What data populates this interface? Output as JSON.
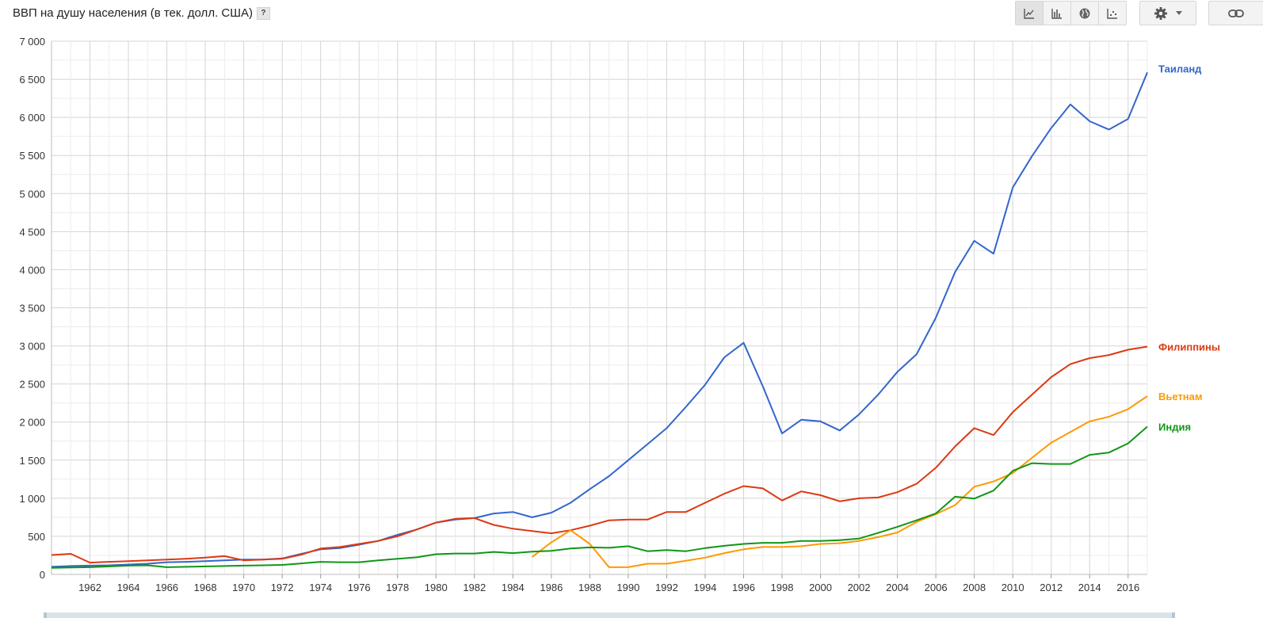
{
  "header": {
    "title": "ВВП на душу населения (в тек. долл. США)",
    "help_label": "?"
  },
  "toolbar": {
    "buttons": [
      {
        "icon": "line-chart-icon",
        "active": true
      },
      {
        "icon": "bar-chart-icon",
        "active": false
      },
      {
        "icon": "globe-icon",
        "active": false
      },
      {
        "icon": "scatter-chart-icon",
        "active": false
      }
    ],
    "settings_icon": "gear-icon",
    "link_icon": "link-icon"
  },
  "chart_data": {
    "type": "line",
    "title": "ВВП на душу населения (в тек. долл. США)",
    "xlim": [
      1960,
      2017
    ],
    "ylim": [
      0,
      7000
    ],
    "y_ticks": [
      {
        "value": 0,
        "label": "0"
      },
      {
        "value": 500,
        "label": "500"
      },
      {
        "value": 1000,
        "label": "1 000"
      },
      {
        "value": 1500,
        "label": "1 500"
      },
      {
        "value": 2000,
        "label": "2 000"
      },
      {
        "value": 2500,
        "label": "2 500"
      },
      {
        "value": 3000,
        "label": "3 000"
      },
      {
        "value": 3500,
        "label": "3 500"
      },
      {
        "value": 4000,
        "label": "4 000"
      },
      {
        "value": 4500,
        "label": "4 500"
      },
      {
        "value": 5000,
        "label": "5 000"
      },
      {
        "value": 5500,
        "label": "5 500"
      },
      {
        "value": 6000,
        "label": "6 000"
      },
      {
        "value": 6500,
        "label": "6 500"
      },
      {
        "value": 7000,
        "label": "7 000"
      }
    ],
    "x_ticks": [
      {
        "value": 1962,
        "label": "1962"
      },
      {
        "value": 1964,
        "label": "1964"
      },
      {
        "value": 1966,
        "label": "1966"
      },
      {
        "value": 1968,
        "label": "1968"
      },
      {
        "value": 1970,
        "label": "1970"
      },
      {
        "value": 1972,
        "label": "1972"
      },
      {
        "value": 1974,
        "label": "1974"
      },
      {
        "value": 1976,
        "label": "1976"
      },
      {
        "value": 1978,
        "label": "1978"
      },
      {
        "value": 1980,
        "label": "1980"
      },
      {
        "value": 1982,
        "label": "1982"
      },
      {
        "value": 1984,
        "label": "1984"
      },
      {
        "value": 1986,
        "label": "1986"
      },
      {
        "value": 1988,
        "label": "1988"
      },
      {
        "value": 1990,
        "label": "1990"
      },
      {
        "value": 1992,
        "label": "1992"
      },
      {
        "value": 1994,
        "label": "1994"
      },
      {
        "value": 1996,
        "label": "1996"
      },
      {
        "value": 1998,
        "label": "1998"
      },
      {
        "value": 2000,
        "label": "2000"
      },
      {
        "value": 2002,
        "label": "2002"
      },
      {
        "value": 2004,
        "label": "2004"
      },
      {
        "value": 2006,
        "label": "2006"
      },
      {
        "value": 2008,
        "label": "2008"
      },
      {
        "value": 2010,
        "label": "2010"
      },
      {
        "value": 2012,
        "label": "2012"
      },
      {
        "value": 2014,
        "label": "2014"
      },
      {
        "value": 2016,
        "label": "2016"
      }
    ],
    "grid": true,
    "legend": "right-end labels",
    "series": [
      {
        "name": "Таиланд",
        "color": "#3366cc",
        "points": [
          [
            1960,
            100
          ],
          [
            1961,
            110
          ],
          [
            1962,
            115
          ],
          [
            1963,
            120
          ],
          [
            1964,
            130
          ],
          [
            1965,
            140
          ],
          [
            1966,
            160
          ],
          [
            1967,
            165
          ],
          [
            1968,
            175
          ],
          [
            1969,
            185
          ],
          [
            1970,
            195
          ],
          [
            1971,
            195
          ],
          [
            1972,
            210
          ],
          [
            1973,
            270
          ],
          [
            1974,
            330
          ],
          [
            1975,
            345
          ],
          [
            1976,
            390
          ],
          [
            1977,
            440
          ],
          [
            1978,
            520
          ],
          [
            1979,
            590
          ],
          [
            1980,
            680
          ],
          [
            1981,
            720
          ],
          [
            1982,
            740
          ],
          [
            1983,
            800
          ],
          [
            1984,
            820
          ],
          [
            1985,
            750
          ],
          [
            1986,
            810
          ],
          [
            1987,
            940
          ],
          [
            1988,
            1120
          ],
          [
            1989,
            1290
          ],
          [
            1990,
            1500
          ],
          [
            1991,
            1710
          ],
          [
            1992,
            1920
          ],
          [
            1993,
            2200
          ],
          [
            1994,
            2490
          ],
          [
            1995,
            2850
          ],
          [
            1996,
            3040
          ],
          [
            1997,
            2470
          ],
          [
            1998,
            1850
          ],
          [
            1999,
            2030
          ],
          [
            2000,
            2010
          ],
          [
            2001,
            1890
          ],
          [
            2002,
            2100
          ],
          [
            2003,
            2360
          ],
          [
            2004,
            2660
          ],
          [
            2005,
            2890
          ],
          [
            2006,
            3370
          ],
          [
            2007,
            3970
          ],
          [
            2008,
            4380
          ],
          [
            2009,
            4210
          ],
          [
            2010,
            5080
          ],
          [
            2011,
            5490
          ],
          [
            2012,
            5860
          ],
          [
            2013,
            6170
          ],
          [
            2014,
            5950
          ],
          [
            2015,
            5840
          ],
          [
            2016,
            5980
          ],
          [
            2017,
            6590
          ]
        ]
      },
      {
        "name": "Филиппины",
        "color": "#dc3912",
        "points": [
          [
            1960,
            255
          ],
          [
            1961,
            270
          ],
          [
            1962,
            155
          ],
          [
            1963,
            165
          ],
          [
            1964,
            175
          ],
          [
            1965,
            185
          ],
          [
            1966,
            195
          ],
          [
            1967,
            205
          ],
          [
            1968,
            220
          ],
          [
            1969,
            240
          ],
          [
            1970,
            185
          ],
          [
            1971,
            195
          ],
          [
            1972,
            205
          ],
          [
            1973,
            260
          ],
          [
            1974,
            340
          ],
          [
            1975,
            360
          ],
          [
            1976,
            400
          ],
          [
            1977,
            440
          ],
          [
            1978,
            500
          ],
          [
            1979,
            590
          ],
          [
            1980,
            680
          ],
          [
            1981,
            730
          ],
          [
            1982,
            740
          ],
          [
            1983,
            650
          ],
          [
            1984,
            600
          ],
          [
            1985,
            570
          ],
          [
            1986,
            540
          ],
          [
            1987,
            580
          ],
          [
            1988,
            640
          ],
          [
            1989,
            710
          ],
          [
            1990,
            720
          ],
          [
            1991,
            720
          ],
          [
            1992,
            820
          ],
          [
            1993,
            820
          ],
          [
            1994,
            940
          ],
          [
            1995,
            1060
          ],
          [
            1996,
            1160
          ],
          [
            1997,
            1130
          ],
          [
            1998,
            970
          ],
          [
            1999,
            1090
          ],
          [
            2000,
            1040
          ],
          [
            2001,
            960
          ],
          [
            2002,
            1000
          ],
          [
            2003,
            1010
          ],
          [
            2004,
            1080
          ],
          [
            2005,
            1190
          ],
          [
            2006,
            1400
          ],
          [
            2007,
            1680
          ],
          [
            2008,
            1920
          ],
          [
            2009,
            1830
          ],
          [
            2010,
            2130
          ],
          [
            2011,
            2360
          ],
          [
            2012,
            2590
          ],
          [
            2013,
            2760
          ],
          [
            2014,
            2840
          ],
          [
            2015,
            2880
          ],
          [
            2016,
            2950
          ],
          [
            2017,
            2990
          ]
        ]
      },
      {
        "name": "Вьетнам",
        "color": "#ff9900",
        "points": [
          [
            1985,
            230
          ],
          [
            1986,
            420
          ],
          [
            1987,
            580
          ],
          [
            1988,
            400
          ],
          [
            1989,
            95
          ],
          [
            1990,
            95
          ],
          [
            1991,
            140
          ],
          [
            1992,
            140
          ],
          [
            1993,
            180
          ],
          [
            1994,
            220
          ],
          [
            1995,
            280
          ],
          [
            1996,
            330
          ],
          [
            1997,
            360
          ],
          [
            1998,
            360
          ],
          [
            1999,
            370
          ],
          [
            2000,
            400
          ],
          [
            2001,
            410
          ],
          [
            2002,
            440
          ],
          [
            2003,
            490
          ],
          [
            2004,
            550
          ],
          [
            2005,
            690
          ],
          [
            2006,
            790
          ],
          [
            2007,
            910
          ],
          [
            2008,
            1150
          ],
          [
            2009,
            1220
          ],
          [
            2010,
            1330
          ],
          [
            2011,
            1530
          ],
          [
            2012,
            1730
          ],
          [
            2013,
            1870
          ],
          [
            2014,
            2010
          ],
          [
            2015,
            2070
          ],
          [
            2016,
            2170
          ],
          [
            2017,
            2340
          ]
        ]
      },
      {
        "name": "Индия",
        "color": "#109618",
        "points": [
          [
            1960,
            85
          ],
          [
            1961,
            90
          ],
          [
            1962,
            95
          ],
          [
            1963,
            105
          ],
          [
            1964,
            115
          ],
          [
            1965,
            120
          ],
          [
            1966,
            95
          ],
          [
            1967,
            100
          ],
          [
            1968,
            105
          ],
          [
            1969,
            110
          ],
          [
            1970,
            115
          ],
          [
            1971,
            120
          ],
          [
            1972,
            125
          ],
          [
            1973,
            145
          ],
          [
            1974,
            165
          ],
          [
            1975,
            160
          ],
          [
            1976,
            160
          ],
          [
            1977,
            185
          ],
          [
            1978,
            205
          ],
          [
            1979,
            225
          ],
          [
            1980,
            265
          ],
          [
            1981,
            275
          ],
          [
            1982,
            275
          ],
          [
            1983,
            295
          ],
          [
            1984,
            280
          ],
          [
            1985,
            300
          ],
          [
            1986,
            310
          ],
          [
            1987,
            340
          ],
          [
            1988,
            355
          ],
          [
            1989,
            350
          ],
          [
            1990,
            370
          ],
          [
            1991,
            305
          ],
          [
            1992,
            320
          ],
          [
            1993,
            305
          ],
          [
            1994,
            345
          ],
          [
            1995,
            375
          ],
          [
            1996,
            400
          ],
          [
            1997,
            415
          ],
          [
            1998,
            415
          ],
          [
            1999,
            440
          ],
          [
            2000,
            440
          ],
          [
            2001,
            450
          ],
          [
            2002,
            470
          ],
          [
            2003,
            545
          ],
          [
            2004,
            625
          ],
          [
            2005,
            710
          ],
          [
            2006,
            800
          ],
          [
            2007,
            1020
          ],
          [
            2008,
            995
          ],
          [
            2009,
            1100
          ],
          [
            2010,
            1360
          ],
          [
            2011,
            1460
          ],
          [
            2012,
            1450
          ],
          [
            2013,
            1450
          ],
          [
            2014,
            1570
          ],
          [
            2015,
            1600
          ],
          [
            2016,
            1720
          ],
          [
            2017,
            1940
          ]
        ]
      }
    ]
  }
}
